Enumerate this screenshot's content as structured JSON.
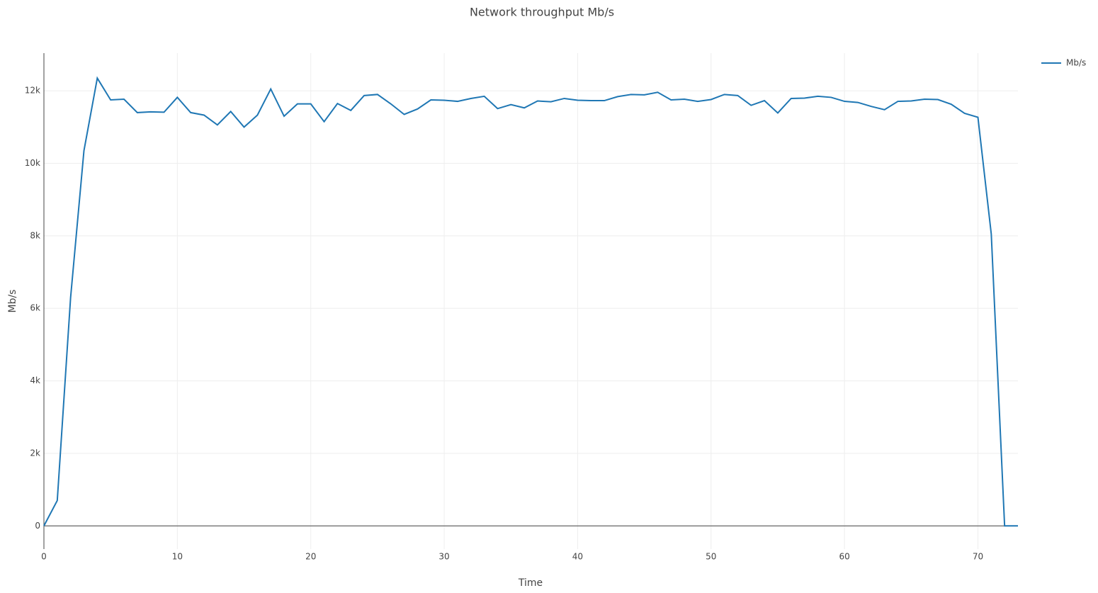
{
  "chart_data": {
    "type": "line",
    "title": "Network throughput Mb/s",
    "x_label": "Time",
    "y_label": "Mb/s",
    "x": [
      0,
      1,
      2,
      3,
      4,
      5,
      6,
      7,
      8,
      9,
      10,
      11,
      12,
      13,
      14,
      15,
      16,
      17,
      18,
      19,
      20,
      21,
      22,
      23,
      24,
      25,
      26,
      27,
      28,
      29,
      30,
      31,
      32,
      33,
      34,
      35,
      36,
      37,
      38,
      39,
      40,
      41,
      42,
      43,
      44,
      45,
      46,
      47,
      48,
      49,
      50,
      51,
      52,
      53,
      54,
      55,
      56,
      57,
      58,
      59,
      60,
      61,
      62,
      63,
      64,
      65,
      66,
      67,
      68,
      69,
      70,
      71,
      72,
      73
    ],
    "series": [
      {
        "name": "Mb/s",
        "color": "#1f77b4",
        "values": [
          0,
          700,
          6300,
          10350,
          12350,
          11750,
          11770,
          11400,
          11420,
          11410,
          11820,
          11400,
          11330,
          11060,
          11430,
          11000,
          11330,
          12050,
          11300,
          11640,
          11640,
          11150,
          11650,
          11460,
          11870,
          11900,
          11640,
          11350,
          11500,
          11750,
          11740,
          11710,
          11790,
          11850,
          11510,
          11620,
          11530,
          11720,
          11700,
          11790,
          11740,
          11730,
          11730,
          11840,
          11900,
          11890,
          11960,
          11750,
          11770,
          11710,
          11760,
          11900,
          11870,
          11600,
          11730,
          11390,
          11790,
          11800,
          11850,
          11820,
          11710,
          11680,
          11570,
          11480,
          11710,
          11720,
          11770,
          11760,
          11630,
          11380,
          11270,
          8050,
          0,
          0
        ]
      }
    ],
    "xlim": [
      0,
      73
    ],
    "ylim": [
      -640,
      13040
    ],
    "xticks": [
      0,
      10,
      20,
      30,
      40,
      50,
      60,
      70
    ],
    "yticks": [
      0,
      {
        "value": 2000,
        "label": "2k"
      },
      {
        "value": 4000,
        "label": "4k"
      },
      {
        "value": 6000,
        "label": "6k"
      },
      {
        "value": 8000,
        "label": "8k"
      },
      {
        "value": 10000,
        "label": "10k"
      },
      {
        "value": 12000,
        "label": "12k"
      }
    ],
    "grid": true,
    "legend": "top-right"
  }
}
